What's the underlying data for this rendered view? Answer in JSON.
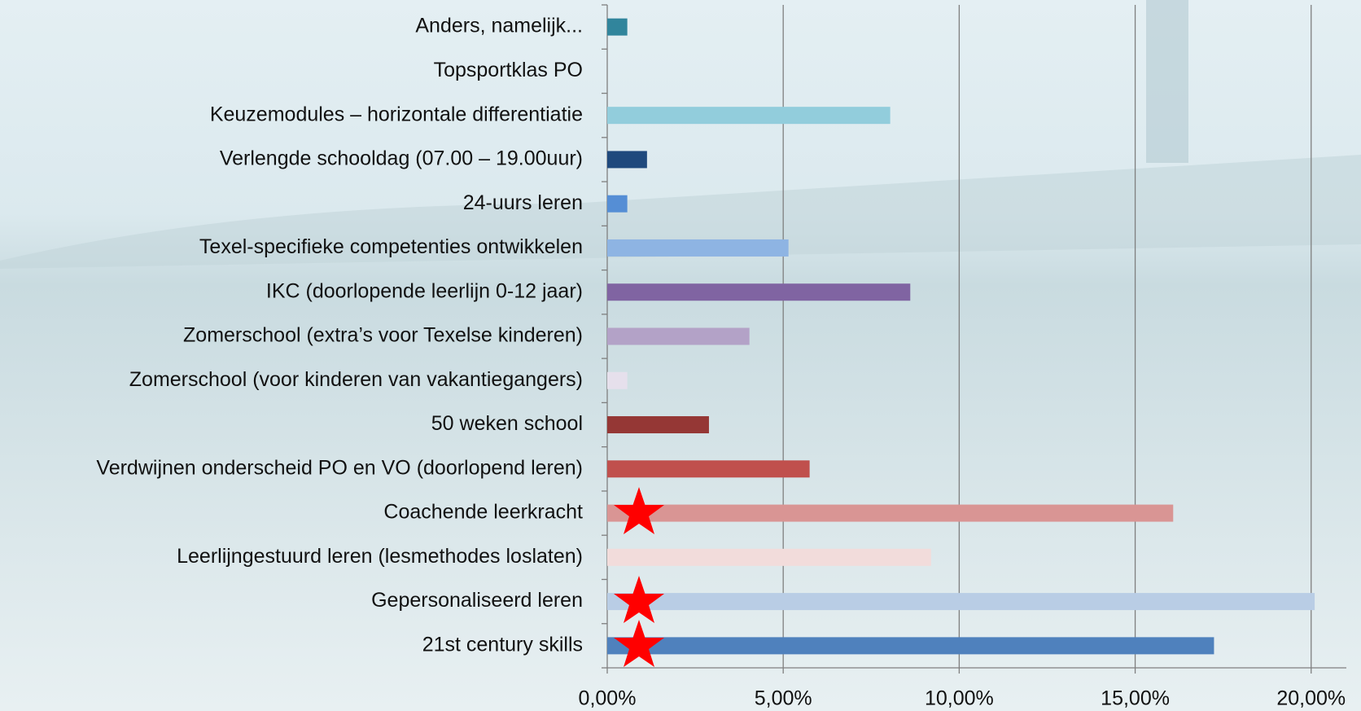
{
  "chart_data": {
    "type": "barh",
    "categories": [
      "Anders, namelijk...",
      "Topsportklas PO",
      "Keuzemodules – horizontale differentiatie",
      "Verlengde schooldag (07.00 – 19.00uur)",
      "24-uurs leren",
      "Texel-specifieke competenties ontwikkelen",
      "IKC (doorlopende leerlijn 0-12 jaar)",
      "Zomerschool (extra’s voor Texelse kinderen)",
      "Zomerschool (voor kinderen van vakantiegangers)",
      "50 weken school",
      "Verdwijnen onderscheid PO en VO (doorlopend leren)",
      "Coachende leerkracht",
      "Leerlijngestuurd leren (lesmethodes loslaten)",
      "Gepersonaliseerd leren",
      "21st century skills"
    ],
    "values": [
      0.57,
      0,
      8.04,
      1.13,
      0.57,
      5.15,
      8.61,
      4.04,
      0.57,
      2.89,
      5.75,
      16.08,
      9.2,
      20.1,
      17.24
    ],
    "colors": [
      "#31859c",
      "#4bacc6",
      "#92cddc",
      "#1f497d",
      "#558ed5",
      "#8eb4e3",
      "#8064a2",
      "#b3a2c7",
      "#e6e0ec",
      "#953735",
      "#c0504d",
      "#d99594",
      "#f2dcdb",
      "#b9cde5",
      "#4f81bd"
    ],
    "xlim": [
      0,
      21
    ],
    "xticks": [
      {
        "value": 0,
        "label": "0,00%"
      },
      {
        "value": 5,
        "label": "5,00%"
      },
      {
        "value": 10,
        "label": "10,00%"
      },
      {
        "value": 15,
        "label": "15,00%"
      },
      {
        "value": 20,
        "label": "20,00%"
      }
    ],
    "grid": true
  }
}
